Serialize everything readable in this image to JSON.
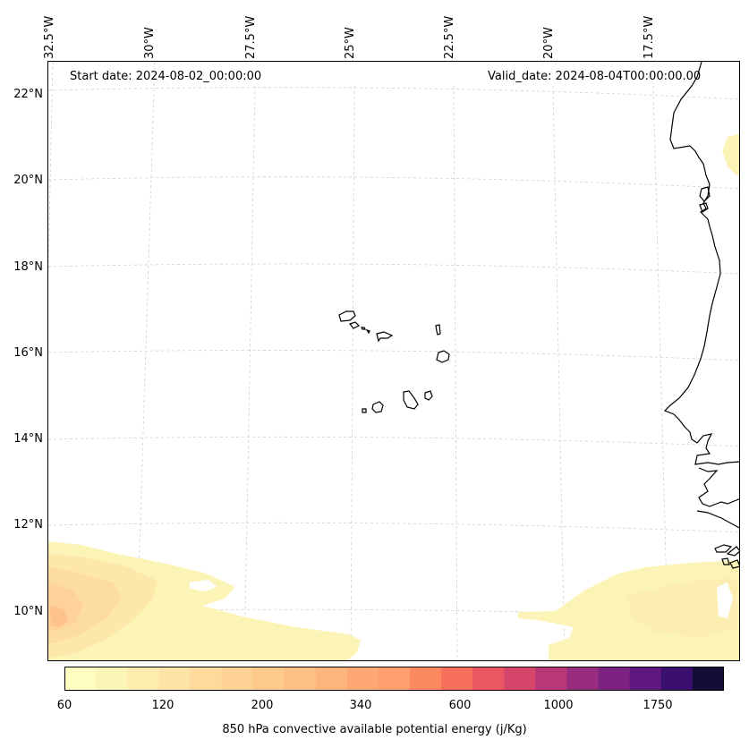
{
  "map": {
    "top_lon_labels": [
      "32.5°W",
      "30°W",
      "27.5°W",
      "25°W",
      "22.5°W",
      "20°W",
      "17.5°W"
    ],
    "left_lat_labels": [
      "22°N",
      "20°N",
      "18°N",
      "16°N",
      "14°N",
      "12°N",
      "10°N"
    ],
    "start_date": "Start date: 2024-08-02_00:00:00",
    "valid_date": "Valid_date: 2024-08-04T00:00:00.00",
    "gridlines": "dashed",
    "coastline_color": "#000000"
  },
  "colorbar": {
    "tick_labels": [
      "60",
      "120",
      "200",
      "340",
      "600",
      "1000",
      "1750"
    ],
    "label": "850 hPa convective available potential energy (j/Kg)",
    "colors": [
      "#fcfdbf",
      "#fcf5b8",
      "#fcedaf",
      "#fde4a6",
      "#fddb9c",
      "#fdd294",
      "#fec98d",
      "#febf84",
      "#feb57c",
      "#fea873",
      "#fe9f6d",
      "#fc8961",
      "#f7705c",
      "#ea5661",
      "#d6456c",
      "#b73779",
      "#982d80",
      "#7c2382",
      "#5f187f",
      "#3b0f70",
      "#140e36"
    ]
  }
}
